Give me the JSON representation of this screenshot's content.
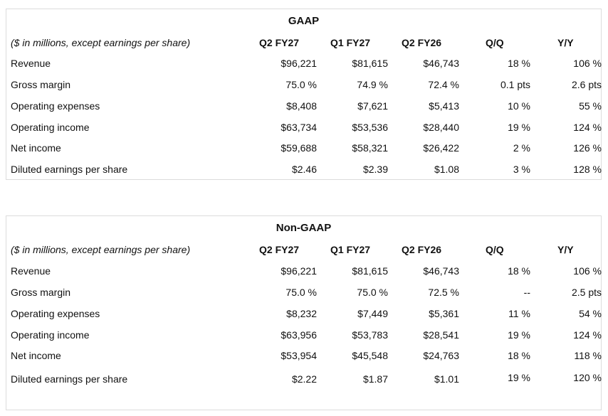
{
  "gaap": {
    "title": "GAAP",
    "header": [
      "($ in millions, except earnings per share)",
      "Q2 FY27",
      "Q1 FY27",
      "Q2 FY26",
      "Q/Q",
      "Y/Y"
    ],
    "rows": [
      [
        "Revenue",
        "$96,221",
        "$81,615",
        "$46,743",
        "18 %",
        "106 %"
      ],
      [
        "Gross margin",
        "75.0 %",
        "74.9 %",
        "72.4 %",
        "0.1 pts",
        "2.6 pts"
      ],
      [
        "Operating expenses",
        "$8,408",
        "$7,621",
        "$5,413",
        "10 %",
        "55 %"
      ],
      [
        "Operating income",
        "$63,734",
        "$53,536",
        "$28,440",
        "19 %",
        "124 %"
      ],
      [
        "Net income",
        "$59,688",
        "$58,321",
        "$26,422",
        "2 %",
        "126 %"
      ],
      [
        "Diluted earnings per share",
        "$2.46",
        "$2.39",
        "$1.08",
        "3 %",
        "128 %"
      ]
    ]
  },
  "nongaap": {
    "title": "Non-GAAP",
    "header": [
      "($ in millions, except earnings per share)",
      "Q2 FY27",
      "Q1 FY27",
      "Q2 FY26",
      "Q/Q",
      "Y/Y"
    ],
    "rows": [
      [
        "Revenue",
        "$96,221",
        "$81,615",
        "$46,743",
        "18 %",
        "106 %"
      ],
      [
        "Gross margin",
        "75.0 %",
        "75.0 %",
        "72.5 %",
        "--",
        "2.5 pts"
      ],
      [
        "Operating expenses",
        "$8,232",
        "$7,449",
        "$5,361",
        "11 %",
        "54 %"
      ],
      [
        "Operating income",
        "$63,956",
        "$53,783",
        "$28,541",
        "19 %",
        "124 %"
      ],
      [
        "Net income",
        "$53,954",
        "$45,548",
        "$24,763",
        "18 %",
        "118 %"
      ],
      [
        "Diluted earnings per share",
        "$2.22",
        "$1.87",
        "$1.01",
        "19 %",
        "120 %"
      ]
    ]
  }
}
